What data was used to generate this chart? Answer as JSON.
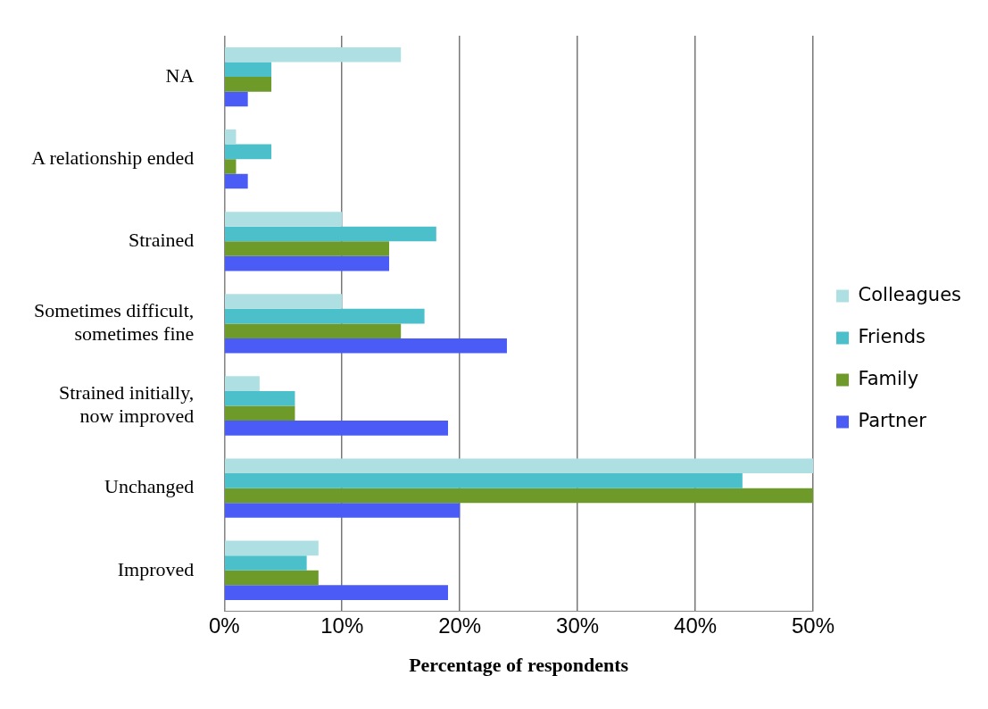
{
  "chart_data": {
    "type": "bar",
    "orientation": "horizontal",
    "xlabel": "Percentage of respondents",
    "categories": [
      "NA",
      "A relationship ended",
      "Strained",
      "Sometimes difficult,\nsometimes fine",
      "Strained initially,\nnow improved",
      "Unchanged",
      "Improved"
    ],
    "series": [
      {
        "name": "Colleagues",
        "color": "#aee0e3",
        "values": [
          15,
          1,
          10,
          10,
          3,
          50,
          8
        ]
      },
      {
        "name": "Friends",
        "color": "#4bbfca",
        "values": [
          4,
          4,
          18,
          17,
          6,
          44,
          7
        ]
      },
      {
        "name": "Family",
        "color": "#6e9a2a",
        "values": [
          4,
          1,
          14,
          15,
          6,
          50,
          8
        ]
      },
      {
        "name": "Partner",
        "color": "#4a5cf5",
        "values": [
          2,
          2,
          14,
          24,
          19,
          20,
          19
        ]
      }
    ],
    "xlim": [
      0,
      50
    ],
    "xticks": [
      {
        "value": 0,
        "label": "0%"
      },
      {
        "value": 10,
        "label": "10%"
      },
      {
        "value": 20,
        "label": "20%"
      },
      {
        "value": 30,
        "label": "30%"
      },
      {
        "value": 40,
        "label": "40%"
      },
      {
        "value": 50,
        "label": "50%"
      }
    ],
    "grid": "x",
    "legend": "right"
  }
}
